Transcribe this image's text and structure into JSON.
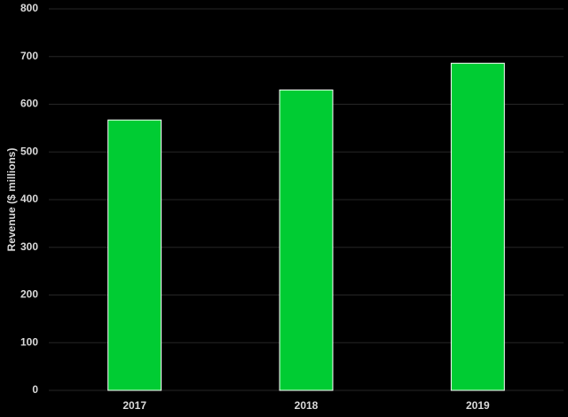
{
  "chart_data": {
    "type": "bar",
    "y_label": "Revenue ($ millions)",
    "categories": [
      "2017",
      "2018",
      "2019"
    ],
    "values": [
      567,
      630,
      686
    ],
    "color": "#00cc33",
    "ylim": [
      0,
      800
    ],
    "yticks": [
      0,
      100,
      200,
      300,
      400,
      500,
      600,
      700,
      800
    ],
    "grid": true
  }
}
